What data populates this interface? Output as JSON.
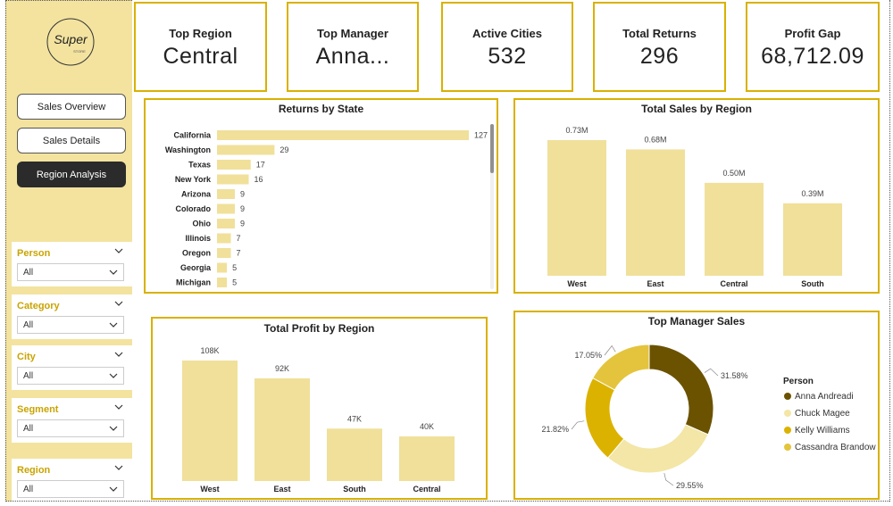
{
  "colors": {
    "accent": "#d9b100",
    "bar": "#f0e09a",
    "sidebar": "#f3e39f",
    "donut": [
      "#6b5200",
      "#f3e6a6",
      "#dcb200",
      "#e4c43c"
    ]
  },
  "logo": {
    "text": "Super",
    "subtext": "STORE"
  },
  "nav": [
    {
      "label": "Sales Overview",
      "active": false
    },
    {
      "label": "Sales Details",
      "active": false
    },
    {
      "label": "Region Analysis",
      "active": true
    }
  ],
  "filters": [
    {
      "label": "Person",
      "value": "All"
    },
    {
      "label": "Category",
      "value": "All"
    },
    {
      "label": "City",
      "value": "All"
    },
    {
      "label": "Segment",
      "value": "All"
    },
    {
      "label": "Region",
      "value": "All"
    }
  ],
  "kpis": [
    {
      "label": "Top Region",
      "value": "Central"
    },
    {
      "label": "Top Manager",
      "value": "Anna..."
    },
    {
      "label": "Active Cities",
      "value": "532"
    },
    {
      "label": "Total Returns",
      "value": "296"
    },
    {
      "label": "Profit Gap",
      "value": "68,712.09"
    }
  ],
  "chart_data": [
    {
      "type": "bar",
      "orientation": "horizontal",
      "title": "Returns by State",
      "categories": [
        "California",
        "Washington",
        "Texas",
        "New York",
        "Arizona",
        "Colorado",
        "Ohio",
        "Illinois",
        "Oregon",
        "Georgia",
        "Michigan"
      ],
      "values": [
        127,
        29,
        17,
        16,
        9,
        9,
        9,
        7,
        7,
        5,
        5
      ],
      "data_labels": [
        "127",
        "29",
        "17",
        "16",
        "9",
        "9",
        "9",
        "7",
        "7",
        "5",
        "5"
      ],
      "xlim": [
        0,
        127
      ],
      "grid": false
    },
    {
      "type": "bar",
      "title": "Total Sales by Region",
      "categories": [
        "West",
        "East",
        "Central",
        "South"
      ],
      "values": [
        0.73,
        0.68,
        0.5,
        0.39
      ],
      "data_labels": [
        "0.73M",
        "0.68M",
        "0.50M",
        "0.39M"
      ],
      "ylim": [
        0,
        0.73
      ],
      "grid": false
    },
    {
      "type": "bar",
      "title": "Total Profit by Region",
      "categories": [
        "West",
        "East",
        "South",
        "Central"
      ],
      "values": [
        108,
        92,
        47,
        40
      ],
      "data_labels": [
        "108K",
        "92K",
        "47K",
        "40K"
      ],
      "ylim": [
        0,
        108
      ],
      "grid": false
    },
    {
      "type": "pie",
      "donut": true,
      "title": "Top Manager Sales",
      "legend_title": "Person",
      "legend_position": "right",
      "categories": [
        "Anna Andreadi",
        "Chuck Magee",
        "Kelly Williams",
        "Cassandra Brandow"
      ],
      "values": [
        31.58,
        29.55,
        21.82,
        17.05
      ],
      "data_labels": [
        "31.58%",
        "29.55%",
        "21.82%",
        "17.05%"
      ]
    }
  ]
}
